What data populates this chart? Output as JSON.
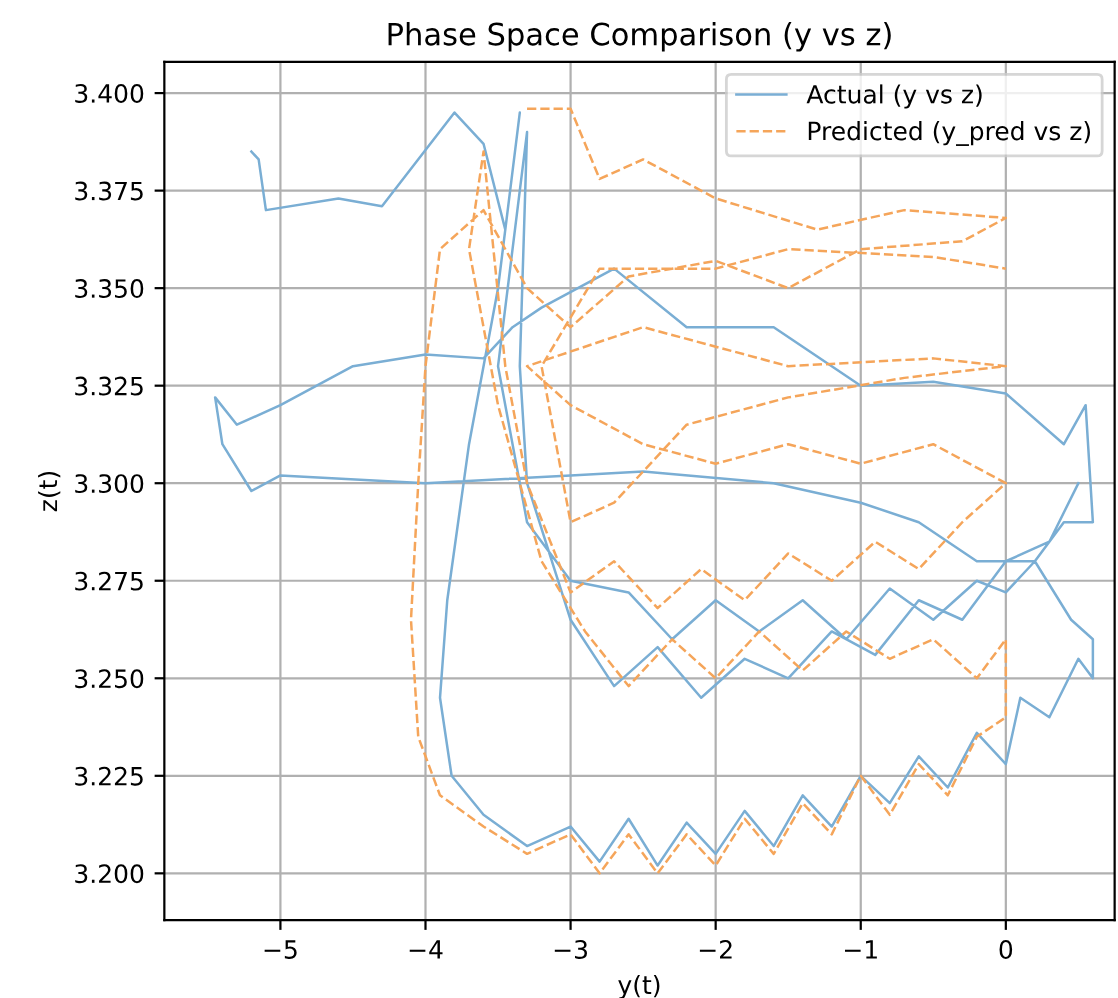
{
  "chart_data": {
    "type": "line",
    "title": "Phase Space Comparison (y vs z)",
    "xlabel": "y(t)",
    "ylabel": "z(t)",
    "xlim": [
      -5.8,
      0.75
    ],
    "ylim": [
      3.188,
      3.408
    ],
    "xticks": [
      {
        "value": -5,
        "label": "−5"
      },
      {
        "value": -4,
        "label": "−4"
      },
      {
        "value": -3,
        "label": "−3"
      },
      {
        "value": -2,
        "label": "−2"
      },
      {
        "value": -1,
        "label": "−1"
      },
      0
    ],
    "yticks": [
      {
        "value": 3.2,
        "label": "3.200"
      },
      {
        "value": 3.225,
        "label": "3.225"
      },
      {
        "value": 3.25,
        "label": "3.250"
      },
      {
        "value": 3.275,
        "label": "3.275"
      },
      {
        "value": 3.3,
        "label": "3.300"
      },
      {
        "value": 3.325,
        "label": "3.325"
      },
      {
        "value": 3.35,
        "label": "3.350"
      },
      {
        "value": 3.375,
        "label": "3.375"
      },
      {
        "value": 3.4,
        "label": "3.400"
      }
    ],
    "grid": true,
    "legend": "top right",
    "series": [
      {
        "name": "Actual (y vs z)",
        "color": "#7aaed4",
        "line_style": "solid",
        "x": [
          -5.2,
          -5.15,
          -5.1,
          -4.6,
          -4.3,
          -3.8,
          -3.6,
          -3.45,
          -3.35,
          -3.5,
          -3.7,
          -3.85,
          -3.9,
          -3.82,
          -3.6,
          -3.3,
          -3.0,
          -2.8,
          -2.6,
          -2.4,
          -2.2,
          -2.0,
          -1.8,
          -1.6,
          -1.4,
          -1.2,
          -1.0,
          -0.8,
          -0.6,
          -0.4,
          -0.2,
          0.0,
          0.1,
          0.3,
          0.5,
          0.6,
          0.6,
          0.45,
          0.2,
          -0.2,
          -0.6,
          -1.0,
          -1.6,
          -2.5,
          -3.0,
          -4.0,
          -5.0,
          -5.2,
          -5.4,
          -5.45,
          -5.3,
          -5.0,
          -4.5,
          -4.0,
          -3.6,
          -3.4,
          -3.2,
          -2.7,
          -2.2,
          -1.6,
          -1.0,
          -0.5,
          0.0,
          0.4,
          0.55,
          0.6,
          0.4,
          0.2,
          0.0,
          -0.2,
          -0.5,
          -0.8,
          -1.1,
          -1.4,
          -1.7,
          -2.0,
          -2.3,
          -2.6,
          -3.0,
          -3.3,
          -3.5,
          -3.4,
          -3.3,
          -3.35,
          -3.3,
          -3.0,
          -2.7,
          -2.4,
          -2.1,
          -1.8,
          -1.5,
          -1.2,
          -0.9,
          -0.6,
          -0.3,
          0.0,
          0.3,
          0.5
        ],
        "values": [
          3.385,
          3.383,
          3.37,
          3.373,
          3.371,
          3.395,
          3.387,
          3.365,
          3.395,
          3.35,
          3.31,
          3.27,
          3.245,
          3.225,
          3.215,
          3.207,
          3.212,
          3.203,
          3.214,
          3.202,
          3.213,
          3.205,
          3.216,
          3.207,
          3.22,
          3.212,
          3.225,
          3.218,
          3.23,
          3.222,
          3.236,
          3.228,
          3.245,
          3.24,
          3.255,
          3.25,
          3.26,
          3.265,
          3.28,
          3.28,
          3.29,
          3.295,
          3.3,
          3.303,
          3.302,
          3.3,
          3.302,
          3.298,
          3.31,
          3.322,
          3.315,
          3.32,
          3.33,
          3.333,
          3.332,
          3.34,
          3.345,
          3.355,
          3.34,
          3.34,
          3.325,
          3.326,
          3.323,
          3.31,
          3.32,
          3.29,
          3.29,
          3.28,
          3.272,
          3.275,
          3.265,
          3.273,
          3.26,
          3.27,
          3.262,
          3.27,
          3.26,
          3.272,
          3.275,
          3.29,
          3.33,
          3.36,
          3.39,
          3.33,
          3.3,
          3.265,
          3.248,
          3.258,
          3.245,
          3.255,
          3.25,
          3.262,
          3.256,
          3.27,
          3.265,
          3.28,
          3.285,
          3.3
        ]
      },
      {
        "name": "Predicted (y_pred vs z)",
        "color": "#f5a55a",
        "line_style": "dashed",
        "x": [
          -3.3,
          -3.0,
          -2.8,
          -2.5,
          -2.0,
          -1.3,
          -0.7,
          0.0,
          -0.3,
          -1.0,
          -1.5,
          -2.0,
          -2.6,
          -3.0,
          -3.3,
          -3.6,
          -3.9,
          -4.0,
          -4.05,
          -4.1,
          -4.05,
          -3.9,
          -3.6,
          -3.3,
          -3.0,
          -2.8,
          -2.6,
          -2.4,
          -2.2,
          -2.0,
          -1.8,
          -1.6,
          -1.4,
          -1.2,
          -1.0,
          -0.8,
          -0.6,
          -0.4,
          -0.2,
          0.0,
          0.0,
          -0.2,
          -0.5,
          -0.8,
          -1.1,
          -1.4,
          -1.7,
          -2.0,
          -2.3,
          -2.6,
          -2.9,
          -3.2,
          -3.5,
          -3.7,
          -3.6,
          -3.45,
          -3.3,
          -3.0,
          -2.7,
          -2.4,
          -2.1,
          -1.8,
          -1.5,
          -1.2,
          -0.9,
          -0.6,
          -0.3,
          0.0,
          -0.5,
          -1.0,
          -1.5,
          -2.0,
          -2.5,
          -3.0,
          -3.3,
          -2.5,
          -1.5,
          -0.5,
          0.0,
          -0.7,
          -1.5,
          -2.2,
          -2.7,
          -3.0,
          -3.2,
          -2.8,
          -2.0,
          -1.5,
          -0.5,
          0.0
        ],
        "values": [
          3.396,
          3.396,
          3.378,
          3.383,
          3.373,
          3.365,
          3.37,
          3.368,
          3.362,
          3.36,
          3.35,
          3.357,
          3.353,
          3.34,
          3.35,
          3.37,
          3.36,
          3.33,
          3.3,
          3.265,
          3.235,
          3.22,
          3.212,
          3.205,
          3.21,
          3.2,
          3.21,
          3.2,
          3.21,
          3.202,
          3.214,
          3.205,
          3.218,
          3.21,
          3.225,
          3.215,
          3.228,
          3.22,
          3.235,
          3.24,
          3.26,
          3.25,
          3.26,
          3.255,
          3.262,
          3.252,
          3.262,
          3.25,
          3.26,
          3.248,
          3.262,
          3.28,
          3.32,
          3.36,
          3.385,
          3.33,
          3.3,
          3.272,
          3.28,
          3.268,
          3.278,
          3.27,
          3.282,
          3.275,
          3.285,
          3.278,
          3.29,
          3.3,
          3.31,
          3.305,
          3.31,
          3.305,
          3.31,
          3.32,
          3.33,
          3.34,
          3.33,
          3.332,
          3.33,
          3.327,
          3.322,
          3.315,
          3.295,
          3.29,
          3.33,
          3.355,
          3.355,
          3.36,
          3.358,
          3.355
        ]
      }
    ]
  }
}
